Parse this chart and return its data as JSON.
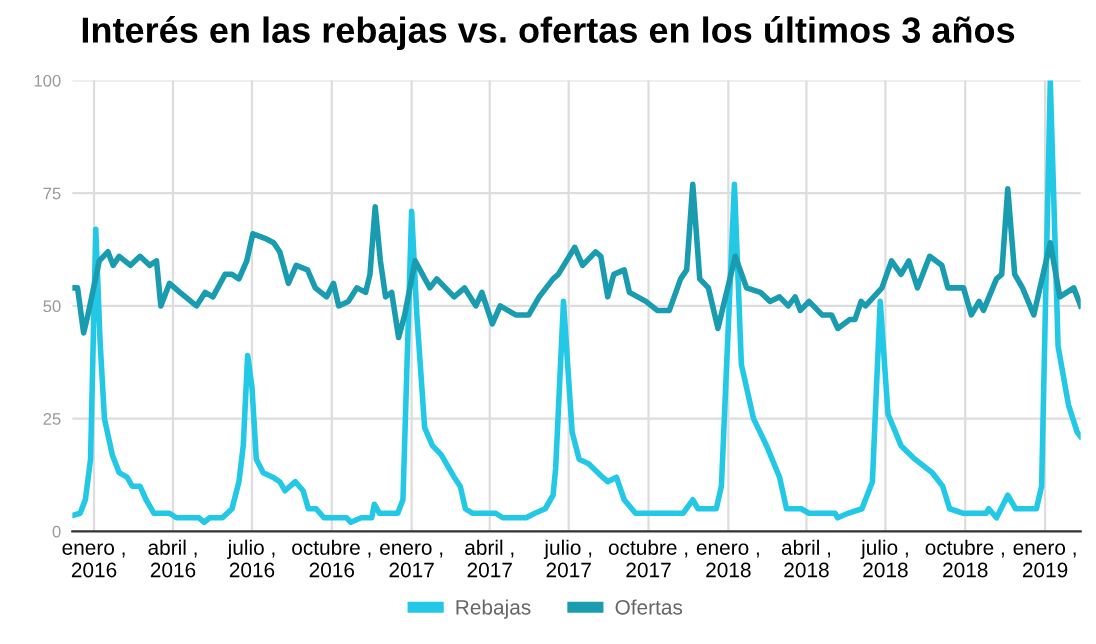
{
  "chart_data": {
    "type": "line",
    "title": "Interés en las rebajas vs. ofertas en los últimos 3 años",
    "xlim": [
      "2015-12-07",
      "2019-02-11"
    ],
    "ylim": [
      0,
      100
    ],
    "yticks": [
      0,
      25,
      50,
      75,
      100
    ],
    "xticks": [
      {
        "value": "2016-01-01",
        "label": "enero ,\n2016"
      },
      {
        "value": "2016-04-01",
        "label": "abril ,\n2016"
      },
      {
        "value": "2016-07-01",
        "label": "julio ,\n2016"
      },
      {
        "value": "2016-10-01",
        "label": "octubre ,\n2016"
      },
      {
        "value": "2017-01-01",
        "label": "enero ,\n2017"
      },
      {
        "value": "2017-04-01",
        "label": "abril ,\n2017"
      },
      {
        "value": "2017-07-01",
        "label": "julio ,\n2017"
      },
      {
        "value": "2017-10-01",
        "label": "octubre ,\n2017"
      },
      {
        "value": "2018-01-01",
        "label": "enero ,\n2018"
      },
      {
        "value": "2018-04-01",
        "label": "abril ,\n2018"
      },
      {
        "value": "2018-07-01",
        "label": "julio ,\n2018"
      },
      {
        "value": "2018-10-01",
        "label": "octubre ,\n2018"
      },
      {
        "value": "2019-01-01",
        "label": "enero ,\n2019"
      }
    ],
    "grid": true,
    "legend": "bottom",
    "marker": "none",
    "line_style": "solid",
    "series": [
      {
        "name": "Rebajas",
        "color": "#22c8e5",
        "x": [
          "2015-12-07",
          "2015-12-16",
          "2015-12-22",
          "2015-12-28",
          "2016-01-03",
          "2016-01-08",
          "2016-01-13",
          "2016-01-22",
          "2016-01-30",
          "2016-02-08",
          "2016-02-14",
          "2016-02-23",
          "2016-03-01",
          "2016-03-10",
          "2016-03-28",
          "2016-04-05",
          "2016-05-01",
          "2016-05-07",
          "2016-05-13",
          "2016-05-28",
          "2016-06-08",
          "2016-06-16",
          "2016-06-21",
          "2016-06-26",
          "2016-07-01",
          "2016-07-06",
          "2016-07-14",
          "2016-07-25",
          "2016-08-02",
          "2016-08-08",
          "2016-08-20",
          "2016-08-29",
          "2016-09-04",
          "2016-09-13",
          "2016-09-22",
          "2016-10-18",
          "2016-10-23",
          "2016-11-04",
          "2016-11-16",
          "2016-11-19",
          "2016-11-25",
          "2016-12-16",
          "2016-12-22",
          "2017-01-01",
          "2017-01-07",
          "2017-01-16",
          "2017-01-25",
          "2017-02-04",
          "2017-02-19",
          "2017-02-26",
          "2017-03-04",
          "2017-03-12",
          "2017-04-08",
          "2017-04-16",
          "2017-05-13",
          "2017-05-23",
          "2017-06-04",
          "2017-06-13",
          "2017-06-16",
          "2017-06-25",
          "2017-07-05",
          "2017-07-13",
          "2017-07-24",
          "2017-08-09",
          "2017-08-15",
          "2017-08-25",
          "2017-09-03",
          "2017-09-16",
          "2017-11-10",
          "2017-11-21",
          "2017-11-27",
          "2017-12-18",
          "2017-12-24",
          "2018-01-08",
          "2018-01-16",
          "2018-01-30",
          "2018-02-14",
          "2018-03-01",
          "2018-03-09",
          "2018-03-26",
          "2018-04-04",
          "2018-05-04",
          "2018-05-07",
          "2018-05-19",
          "2018-06-04",
          "2018-06-16",
          "2018-06-25",
          "2018-07-04",
          "2018-07-19",
          "2018-08-04",
          "2018-08-24",
          "2018-09-05",
          "2018-09-13",
          "2018-09-29",
          "2018-10-25",
          "2018-10-28",
          "2018-11-06",
          "2018-11-19",
          "2018-11-28",
          "2018-12-22",
          "2018-12-28",
          "2019-01-07",
          "2019-01-16",
          "2019-01-28",
          "2019-02-07",
          "2019-02-11"
        ],
        "values": [
          3.5,
          4,
          7,
          16,
          67,
          42,
          25,
          17,
          13,
          12,
          10,
          10,
          7,
          4,
          4,
          3,
          3,
          2,
          3,
          3,
          5,
          11,
          19,
          39,
          32,
          16,
          13,
          12,
          11,
          9,
          11,
          9,
          5,
          5,
          3,
          3,
          2,
          3,
          3,
          6,
          4,
          4,
          7,
          71,
          48,
          23,
          19,
          17,
          12,
          10,
          5,
          4,
          4,
          3,
          3,
          4,
          5,
          8,
          14,
          51,
          22,
          16,
          15,
          12,
          11,
          12,
          7,
          4,
          4,
          7,
          5,
          5,
          10,
          77,
          37,
          25,
          19,
          12,
          5,
          5,
          4,
          4,
          3,
          4,
          5,
          11,
          51,
          26,
          19,
          16,
          13,
          10,
          5,
          4,
          4,
          5,
          3,
          8,
          5,
          5,
          10,
          100,
          41,
          28,
          22,
          21
        ]
      },
      {
        "name": "Ofertas",
        "color": "#1a9cb0",
        "x": [
          "2015-12-07",
          "2015-12-13",
          "2015-12-20",
          "2015-12-25",
          "2016-01-07",
          "2016-01-17",
          "2016-01-23",
          "2016-01-30",
          "2016-02-12",
          "2016-02-23",
          "2016-03-05",
          "2016-03-13",
          "2016-03-18",
          "2016-03-28",
          "2016-04-09",
          "2016-04-28",
          "2016-05-08",
          "2016-05-17",
          "2016-05-31",
          "2016-06-08",
          "2016-06-16",
          "2016-06-25",
          "2016-07-02",
          "2016-07-16",
          "2016-07-26",
          "2016-08-02",
          "2016-08-12",
          "2016-08-21",
          "2016-09-03",
          "2016-09-12",
          "2016-09-25",
          "2016-10-03",
          "2016-10-09",
          "2016-10-20",
          "2016-10-30",
          "2016-11-09",
          "2016-11-14",
          "2016-11-20",
          "2016-11-26",
          "2016-12-02",
          "2016-12-09",
          "2016-12-17",
          "2016-12-24",
          "2017-01-05",
          "2017-01-22",
          "2017-01-30",
          "2017-02-19",
          "2017-03-03",
          "2017-03-16",
          "2017-03-23",
          "2017-04-04",
          "2017-04-13",
          "2017-05-01",
          "2017-05-16",
          "2017-05-28",
          "2017-06-13",
          "2017-06-19",
          "2017-07-08",
          "2017-07-17",
          "2017-08-01",
          "2017-08-07",
          "2017-08-15",
          "2017-08-22",
          "2017-09-03",
          "2017-09-09",
          "2017-09-28",
          "2017-10-11",
          "2017-10-25",
          "2017-11-07",
          "2017-11-14",
          "2017-11-21",
          "2017-11-29",
          "2017-12-09",
          "2017-12-20",
          "2018-01-09",
          "2018-01-22",
          "2018-02-07",
          "2018-02-18",
          "2018-03-01",
          "2018-03-11",
          "2018-03-19",
          "2018-03-25",
          "2018-04-04",
          "2018-04-19",
          "2018-04-30",
          "2018-05-07",
          "2018-05-21",
          "2018-05-27",
          "2018-06-03",
          "2018-06-08",
          "2018-06-27",
          "2018-07-08",
          "2018-07-19",
          "2018-07-28",
          "2018-08-07",
          "2018-08-21",
          "2018-09-04",
          "2018-09-11",
          "2018-09-29",
          "2018-10-08",
          "2018-10-17",
          "2018-10-22",
          "2018-11-06",
          "2018-11-12",
          "2018-11-19",
          "2018-11-27",
          "2018-12-06",
          "2018-12-19",
          "2019-01-07",
          "2019-01-18",
          "2019-02-03",
          "2019-02-11"
        ],
        "values": [
          54,
          54,
          44,
          48,
          60,
          62,
          59,
          61,
          59,
          61,
          59,
          60,
          50,
          55,
          53,
          50,
          53,
          52,
          57,
          57,
          56,
          60,
          66,
          65,
          64,
          62,
          55,
          59,
          58,
          54,
          52,
          55,
          50,
          51,
          54,
          53,
          57,
          72,
          60,
          52,
          53,
          43,
          48,
          60,
          54,
          56,
          52,
          54,
          50,
          53,
          46,
          50,
          48,
          48,
          52,
          56,
          57,
          63,
          59,
          62,
          61,
          52,
          57,
          58,
          53,
          51,
          49,
          49,
          56,
          58,
          77,
          56,
          54,
          45,
          61,
          54,
          53,
          51,
          52,
          50,
          52,
          49,
          51,
          48,
          48,
          45,
          47,
          47,
          51,
          50,
          54,
          60,
          57,
          60,
          54,
          61,
          59,
          54,
          54,
          48,
          51,
          49,
          56,
          57,
          76,
          57,
          54,
          48,
          64,
          52,
          54,
          50
        ]
      }
    ]
  }
}
